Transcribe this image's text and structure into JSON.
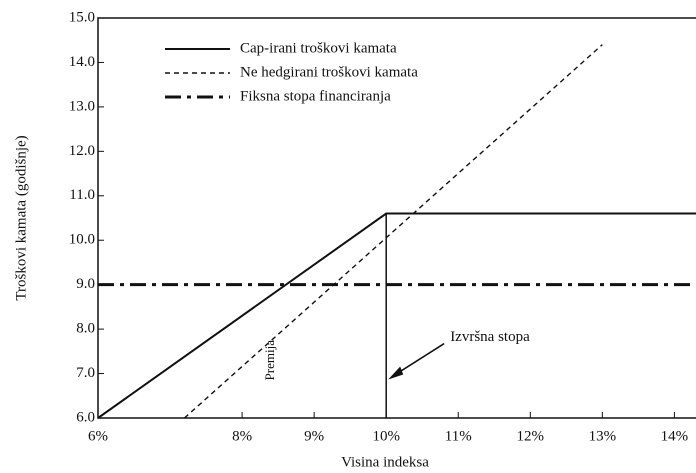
{
  "chart_data": {
    "type": "line",
    "xlabel": "Visina indeksa",
    "ylabel": "Troškovi kamata (godišnje)",
    "xlim": [
      6,
      14.3
    ],
    "ylim": [
      6,
      15
    ],
    "xticks": [
      {
        "value": 6,
        "label": "6%"
      },
      {
        "value": 8,
        "label": "8%"
      },
      {
        "value": 9,
        "label": "9%"
      },
      {
        "value": 10,
        "label": "10%"
      },
      {
        "value": 11,
        "label": "11%"
      },
      {
        "value": 12,
        "label": "12%"
      },
      {
        "value": 13,
        "label": "13%"
      },
      {
        "value": 14,
        "label": "14%"
      }
    ],
    "yticks": [
      {
        "value": 6,
        "label": "6.0"
      },
      {
        "value": 7,
        "label": "7.0"
      },
      {
        "value": 8,
        "label": "8.0"
      },
      {
        "value": 9,
        "label": "9.0"
      },
      {
        "value": 10,
        "label": "10.0"
      },
      {
        "value": 11,
        "label": "11.0"
      },
      {
        "value": 12,
        "label": "12.0"
      },
      {
        "value": 13,
        "label": "13.0"
      },
      {
        "value": 14,
        "label": "14.0"
      },
      {
        "value": 15,
        "label": "15.0"
      }
    ],
    "legend": "upper left",
    "series": [
      {
        "name": "Cap-irani troškovi kamata",
        "color": "#111111",
        "dash": "solid",
        "x": [
          6,
          10,
          14.3
        ],
        "values": [
          6,
          10.6,
          10.6
        ]
      },
      {
        "name": "Ne hedgirani troškovi kamata",
        "color": "#111111",
        "dash": "dashed",
        "x": [
          7.2,
          13
        ],
        "values": [
          6,
          14.4
        ]
      },
      {
        "name": "Fiksna stopa financiranja",
        "color": "#111111",
        "dash": "dashdot",
        "x": [
          6,
          14.3
        ],
        "values": [
          9,
          9
        ]
      }
    ],
    "strike": 10,
    "annotations": [
      {
        "text": "Izvršna stopa",
        "x": 10,
        "y": 7
      },
      {
        "text": "Premija",
        "x": 8.4,
        "y": 7.3
      }
    ]
  }
}
